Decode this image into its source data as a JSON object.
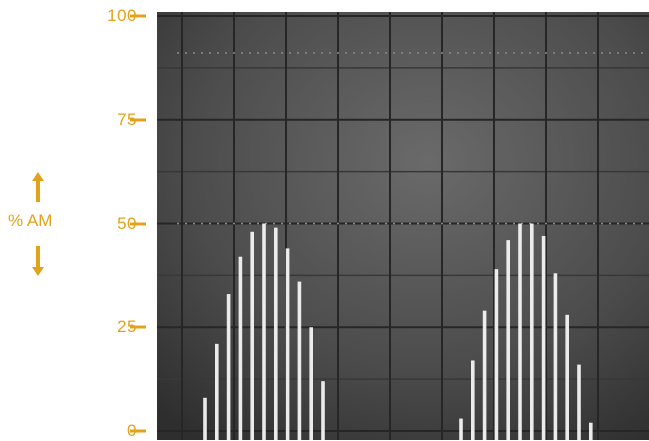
{
  "chart_data": {
    "type": "bar",
    "ylabel": "% AM",
    "ylim": [
      0,
      100
    ],
    "yticks": [
      {
        "value": 100,
        "label": "100"
      },
      {
        "value": 75,
        "label": "75"
      },
      {
        "value": 50,
        "label": "50"
      },
      {
        "value": 25,
        "label": "25"
      },
      {
        "value": 0,
        "label": "0"
      }
    ],
    "grid": true,
    "groups": [
      {
        "values": [
          8,
          21,
          33,
          42,
          48,
          50,
          49,
          44,
          36,
          25,
          12
        ]
      },
      {
        "values": [
          3,
          17,
          29,
          39,
          46,
          50,
          50,
          47,
          38,
          28,
          16,
          2
        ]
      }
    ],
    "colors": {
      "axis": "#e3a21b",
      "screen": "#4a4a4a",
      "bars": "#f4f4f4"
    }
  }
}
